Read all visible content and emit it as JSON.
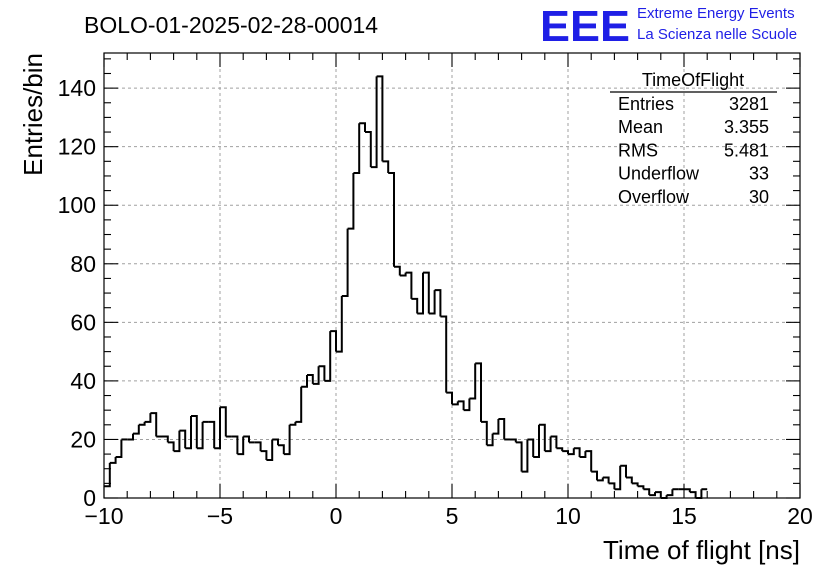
{
  "header": {
    "run_title": "BOLO-01-2025-02-28-00014",
    "logo_text": "EEE",
    "org_line1": "Extreme Energy Events",
    "org_line2": "La Scienza nelle Scuole"
  },
  "stats_box": {
    "title": "TimeOfFlight",
    "rows": [
      {
        "label": "Entries",
        "value": "3281"
      },
      {
        "label": "Mean",
        "value": "3.355"
      },
      {
        "label": "RMS",
        "value": "5.481"
      },
      {
        "label": "Underflow",
        "value": "33"
      },
      {
        "label": "Overflow",
        "value": "30"
      }
    ]
  },
  "colors": {
    "line": "#000000",
    "grid": "#a0a0a0",
    "logo": "#1f1fe6"
  },
  "chart_data": {
    "type": "histogram",
    "xlabel": "Time of flight [ns]",
    "ylabel": "Entries/bin",
    "xlim": [
      -10,
      20
    ],
    "ylim": [
      0,
      152
    ],
    "grid": true,
    "xticks": [
      -10,
      -5,
      0,
      5,
      10,
      15,
      20
    ],
    "yticks": [
      0,
      20,
      40,
      60,
      80,
      100,
      120,
      140
    ],
    "bin_width": 0.25,
    "values": [
      4,
      12,
      14,
      20,
      20,
      22,
      25,
      26,
      29,
      21,
      21,
      19,
      16,
      23,
      17,
      28,
      17,
      26,
      26,
      17,
      31,
      21,
      21,
      15,
      21,
      19,
      19,
      16,
      13,
      20,
      18,
      15,
      25,
      26,
      38,
      42,
      39,
      45,
      40,
      57,
      50,
      69,
      92,
      111,
      128,
      125,
      113,
      144,
      115,
      111,
      79,
      76,
      77,
      68,
      63,
      77,
      63,
      71,
      62,
      36,
      32,
      33,
      30,
      34,
      46,
      26,
      18,
      22,
      27,
      20,
      20,
      19,
      9,
      20,
      14,
      25,
      16,
      21,
      17,
      16,
      15,
      17,
      14,
      16,
      9,
      6,
      7,
      5,
      3,
      11,
      7,
      5,
      4,
      3,
      1,
      2,
      0,
      1,
      3,
      3,
      3,
      2,
      0,
      3
    ]
  }
}
